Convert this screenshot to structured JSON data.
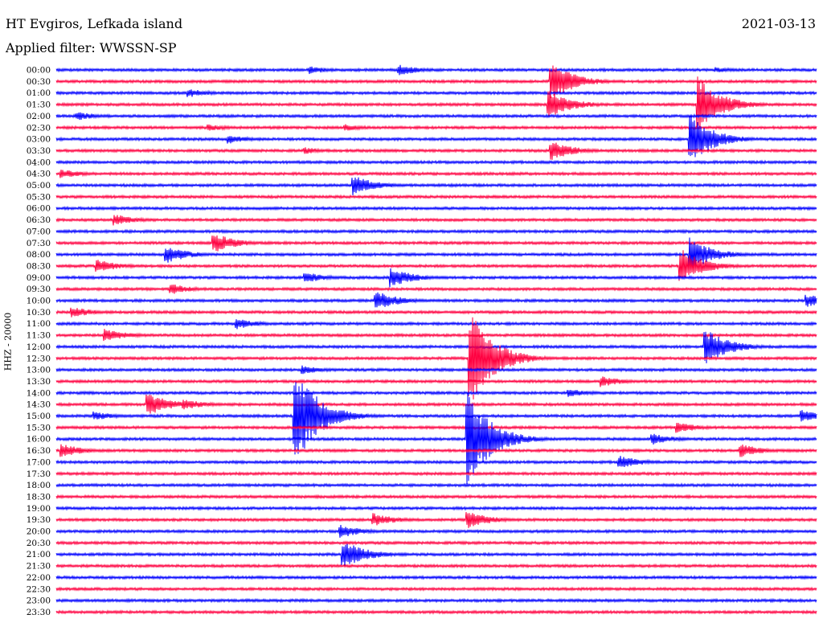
{
  "header": {
    "title": "HT Evgiros, Lefkada island",
    "date": "2021-03-13",
    "filter": "Applied filter: WWSSN-SP",
    "channel": "HHZ - 20000"
  },
  "colors": {
    "even_hour": "#0000ff",
    "half_hour": "#ff0040"
  },
  "chart_data": {
    "type": "line",
    "title": "HT Evgiros, Lefkada island",
    "date": "2021-03-13",
    "filter": "WWSSN-SP",
    "ylabel": "HHZ - 20000",
    "row_minutes": 30,
    "categories": [
      "00:00",
      "00:30",
      "01:00",
      "01:30",
      "02:00",
      "02:30",
      "03:00",
      "03:30",
      "04:00",
      "04:30",
      "05:00",
      "05:30",
      "06:00",
      "06:30",
      "07:00",
      "07:30",
      "08:00",
      "08:30",
      "09:00",
      "09:30",
      "10:00",
      "10:30",
      "11:00",
      "11:30",
      "12:00",
      "12:30",
      "13:00",
      "13:30",
      "14:00",
      "14:30",
      "15:00",
      "15:30",
      "16:00",
      "16:30",
      "17:00",
      "17:30",
      "18:00",
      "18:30",
      "19:00",
      "19:30",
      "20:00",
      "20:30",
      "21:00",
      "21:30",
      "22:00",
      "22:30",
      "23:00",
      "23:30"
    ],
    "row_colors": [
      "blue",
      "red"
    ],
    "events": [
      {
        "row": "00:00",
        "minute": 10,
        "amp": 0.35
      },
      {
        "row": "00:00",
        "minute": 13.5,
        "amp": 0.5
      },
      {
        "row": "00:00",
        "minute": 26,
        "amp": 0.25
      },
      {
        "row": "00:30",
        "minute": 19.5,
        "amp": 1.8
      },
      {
        "row": "01:00",
        "minute": 5.2,
        "amp": 0.4
      },
      {
        "row": "01:30",
        "minute": 19.4,
        "amp": 1.3
      },
      {
        "row": "01:30",
        "minute": 25.3,
        "amp": 2.5
      },
      {
        "row": "02:00",
        "minute": 0.8,
        "amp": 0.4
      },
      {
        "row": "02:30",
        "minute": 6,
        "amp": 0.3
      },
      {
        "row": "02:30",
        "minute": 11.4,
        "amp": 0.3
      },
      {
        "row": "03:00",
        "minute": 6.8,
        "amp": 0.4
      },
      {
        "row": "03:00",
        "minute": 25,
        "amp": 2.2
      },
      {
        "row": "03:30",
        "minute": 9.8,
        "amp": 0.3
      },
      {
        "row": "03:30",
        "minute": 19.5,
        "amp": 0.9
      },
      {
        "row": "04:30",
        "minute": 0.2,
        "amp": 0.4
      },
      {
        "row": "05:00",
        "minute": 11.7,
        "amp": 0.9
      },
      {
        "row": "06:30",
        "minute": 2.3,
        "amp": 0.5
      },
      {
        "row": "07:30",
        "minute": 6.2,
        "amp": 0.9
      },
      {
        "row": "08:00",
        "minute": 4.3,
        "amp": 0.8
      },
      {
        "row": "08:00",
        "minute": 25,
        "amp": 1.5
      },
      {
        "row": "08:30",
        "minute": 1.6,
        "amp": 0.6
      },
      {
        "row": "08:30",
        "minute": 24.6,
        "amp": 1.6
      },
      {
        "row": "09:00",
        "minute": 9.8,
        "amp": 0.5
      },
      {
        "row": "09:00",
        "minute": 13.2,
        "amp": 0.9
      },
      {
        "row": "09:30",
        "minute": 4.5,
        "amp": 0.5
      },
      {
        "row": "10:00",
        "minute": 12.6,
        "amp": 0.9
      },
      {
        "row": "10:00",
        "minute": 29.6,
        "amp": 0.6
      },
      {
        "row": "10:30",
        "minute": 0.6,
        "amp": 0.5
      },
      {
        "row": "11:00",
        "minute": 7.1,
        "amp": 0.5
      },
      {
        "row": "11:30",
        "minute": 1.9,
        "amp": 0.6
      },
      {
        "row": "12:00",
        "minute": 25.6,
        "amp": 1.6
      },
      {
        "row": "12:30",
        "minute": 16.3,
        "amp": 4.5
      },
      {
        "row": "13:00",
        "minute": 9.7,
        "amp": 0.4
      },
      {
        "row": "13:30",
        "minute": 21.5,
        "amp": 0.5
      },
      {
        "row": "14:00",
        "minute": 20.2,
        "amp": 0.4
      },
      {
        "row": "14:30",
        "minute": 3.6,
        "amp": 1.0
      },
      {
        "row": "14:30",
        "minute": 5.0,
        "amp": 0.5
      },
      {
        "row": "15:00",
        "minute": 9.4,
        "amp": 4.5
      },
      {
        "row": "15:00",
        "minute": 1.5,
        "amp": 0.4
      },
      {
        "row": "15:00",
        "minute": 29.4,
        "amp": 0.6
      },
      {
        "row": "15:30",
        "minute": 24.5,
        "amp": 0.5
      },
      {
        "row": "16:00",
        "minute": 16.2,
        "amp": 4.5
      },
      {
        "row": "16:00",
        "minute": 23.5,
        "amp": 0.5
      },
      {
        "row": "16:30",
        "minute": 0.2,
        "amp": 0.6
      },
      {
        "row": "16:30",
        "minute": 27,
        "amp": 0.6
      },
      {
        "row": "17:00",
        "minute": 22.2,
        "amp": 0.6
      },
      {
        "row": "19:30",
        "minute": 12.5,
        "amp": 0.6
      },
      {
        "row": "19:30",
        "minute": 16.2,
        "amp": 0.8
      },
      {
        "row": "20:00",
        "minute": 11.2,
        "amp": 0.6
      },
      {
        "row": "21:00",
        "minute": 11.3,
        "amp": 1.3
      }
    ]
  }
}
